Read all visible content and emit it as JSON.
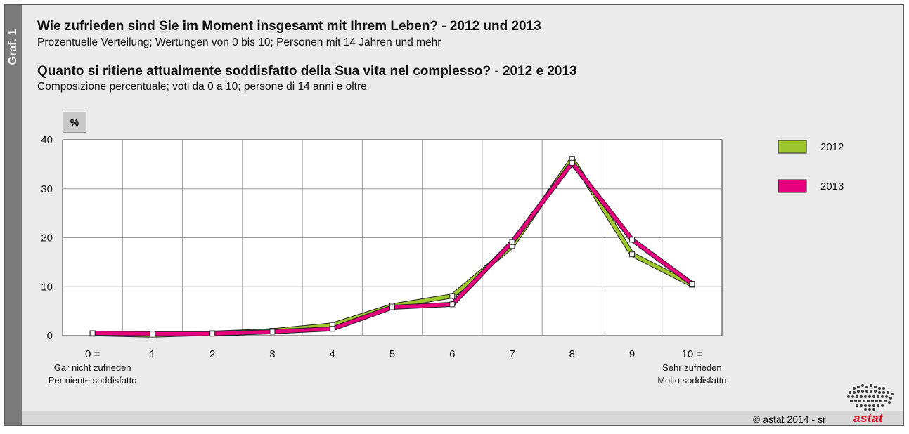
{
  "side_tab": "Graf. 1",
  "titles": {
    "de_title": "Wie zufrieden sind Sie im Moment insgesamt mit Ihrem Leben? - 2012 und 2013",
    "de_subtitle": "Prozentuelle Verteilung; Wertungen von 0 bis 10; Personen mit 14 Jahren und mehr",
    "it_title": "Quanto si ritiene attualmente soddisfatto della Sua vita nel complesso? - 2012 e 2013",
    "it_subtitle": "Composizione percentuale; voti da 0 a 10; persone di 14 anni e oltre"
  },
  "unit_label": "%",
  "footer": {
    "copyright": "© astat 2014 - sr",
    "brand": "astat"
  },
  "chart_data": {
    "type": "line",
    "x": [
      "0 =",
      "1",
      "2",
      "3",
      "4",
      "5",
      "6",
      "7",
      "8",
      "9",
      "10 ="
    ],
    "x_sublabels": {
      "0": [
        "Gar nicht zufrieden",
        "Per niente soddisfatto"
      ],
      "10": [
        "Sehr zufrieden",
        "Molto soddisfatto"
      ]
    },
    "y_ticks": [
      "0",
      "10",
      "20",
      "30",
      "40"
    ],
    "ylim": [
      0,
      40
    ],
    "grid": true,
    "legend_position": "right",
    "series": [
      {
        "name": "2012",
        "color": "#9dc62d",
        "values": [
          0.4,
          0.1,
          0.5,
          1.0,
          2.2,
          6.1,
          8.1,
          18.3,
          36.1,
          16.6,
          10.4
        ]
      },
      {
        "name": "2013",
        "color": "#e6007e",
        "values": [
          0.5,
          0.4,
          0.4,
          0.8,
          1.4,
          5.8,
          6.4,
          19.1,
          35.3,
          19.6,
          10.6
        ]
      }
    ]
  }
}
